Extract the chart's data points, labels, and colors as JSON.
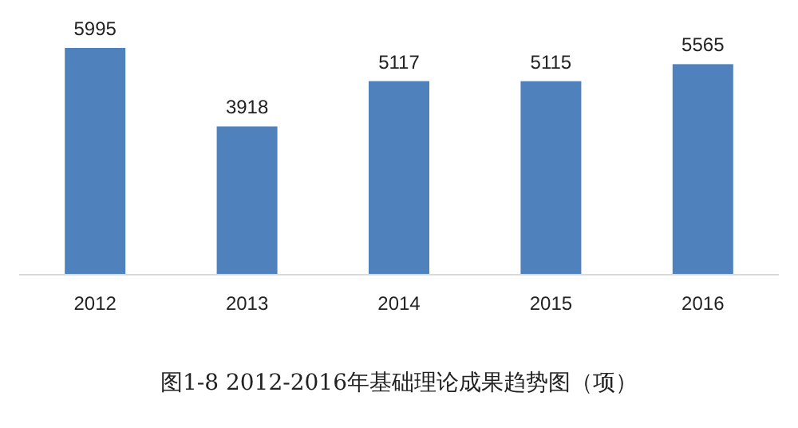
{
  "chart_data": {
    "type": "bar",
    "title": "图1-8  2012-2016年基础理论成果趋势图（项）",
    "categories": [
      "2012",
      "2013",
      "2014",
      "2015",
      "2016"
    ],
    "values": [
      5995,
      3918,
      5117,
      5115,
      5565
    ],
    "color": "#4f81bd",
    "data_labels": true
  }
}
